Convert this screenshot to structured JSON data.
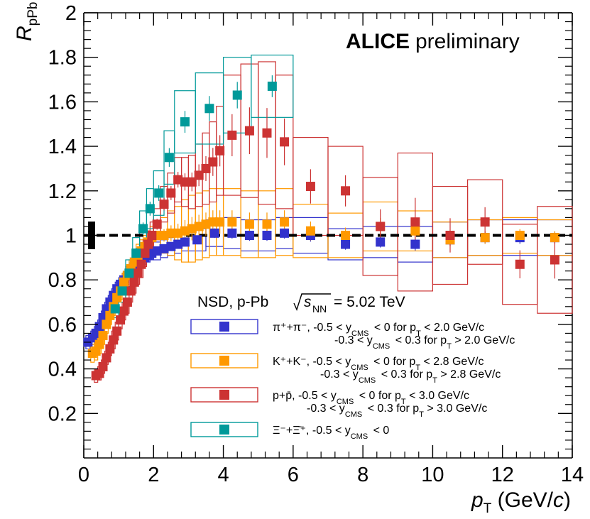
{
  "chart_data": {
    "type": "scatter",
    "title": "ALICE preliminary",
    "title_bold": "ALICE",
    "title_rest": "preliminary",
    "xlabel": "p_T (GeV/c)",
    "ylabel": "R_pPb",
    "xlim": [
      0,
      14
    ],
    "ylim": [
      0,
      2
    ],
    "x_ticks": [
      0,
      2,
      4,
      6,
      8,
      10,
      12,
      14
    ],
    "y_ticks": [
      0.2,
      0.4,
      0.6,
      0.8,
      1,
      1.2,
      1.4,
      1.6,
      1.8,
      2
    ],
    "reference_line": 1,
    "normalization_uncertainty": 0.062,
    "legend": {
      "header": {
        "prefix": "NSD, p-Pb",
        "s_symbol": "s",
        "s_sub": "NN",
        "suffix": "= 5.02 TeV"
      }
    },
    "series": [
      {
        "name": "pi",
        "color": "#3333cc",
        "legend_text": "π⁺+π⁻, -0.5 < y_CMS < 0 for p_T < 2.0 GeV/c ; -0.3 < y_CMS < 0.3 for p_T > 2.0 GeV/c",
        "legend_line1": "π⁺+π⁻, -0.5 < y",
        "legend_line1_tail": "< 0    for p",
        "legend_line1_end": "< 2.0 GeV/c",
        "legend_line2": "-0.3 < y",
        "legend_line2_tail": "< 0.3 for p",
        "legend_line2_end": "> 2.0 GeV/c",
        "points": [
          {
            "x": 0.12,
            "y": 0.52,
            "w": 0.12,
            "sys": 0.03
          },
          {
            "x": 0.25,
            "y": 0.54,
            "w": 0.1,
            "sys": 0.03
          },
          {
            "x": 0.35,
            "y": 0.56,
            "w": 0.1,
            "sys": 0.03
          },
          {
            "x": 0.45,
            "y": 0.59,
            "w": 0.1,
            "sys": 0.03
          },
          {
            "x": 0.55,
            "y": 0.63,
            "w": 0.1,
            "sys": 0.03
          },
          {
            "x": 0.65,
            "y": 0.67,
            "w": 0.1,
            "sys": 0.03
          },
          {
            "x": 0.75,
            "y": 0.7,
            "w": 0.1,
            "sys": 0.03
          },
          {
            "x": 0.85,
            "y": 0.73,
            "w": 0.1,
            "sys": 0.03
          },
          {
            "x": 0.95,
            "y": 0.76,
            "w": 0.1,
            "sys": 0.03
          },
          {
            "x": 1.05,
            "y": 0.78,
            "w": 0.1,
            "sys": 0.03
          },
          {
            "x": 1.15,
            "y": 0.8,
            "w": 0.1,
            "sys": 0.03
          },
          {
            "x": 1.25,
            "y": 0.82,
            "w": 0.1,
            "sys": 0.03
          },
          {
            "x": 1.35,
            "y": 0.84,
            "w": 0.1,
            "sys": 0.03
          },
          {
            "x": 1.45,
            "y": 0.86,
            "w": 0.1,
            "sys": 0.03
          },
          {
            "x": 1.55,
            "y": 0.88,
            "w": 0.1,
            "sys": 0.03
          },
          {
            "x": 1.65,
            "y": 0.89,
            "w": 0.1,
            "sys": 0.03
          },
          {
            "x": 1.75,
            "y": 0.9,
            "w": 0.1,
            "sys": 0.03
          },
          {
            "x": 1.85,
            "y": 0.91,
            "w": 0.1,
            "sys": 0.03
          },
          {
            "x": 1.95,
            "y": 0.92,
            "w": 0.1,
            "sys": 0.03
          },
          {
            "x": 2.1,
            "y": 0.93,
            "w": 0.2,
            "sys": 0.04
          },
          {
            "x": 2.3,
            "y": 0.94,
            "w": 0.2,
            "sys": 0.04
          },
          {
            "x": 2.5,
            "y": 0.95,
            "w": 0.2,
            "sys": 0.04
          },
          {
            "x": 2.7,
            "y": 0.96,
            "w": 0.2,
            "sys": 0.04
          },
          {
            "x": 2.9,
            "y": 0.97,
            "w": 0.2,
            "sys": 0.04
          },
          {
            "x": 3.25,
            "y": 0.98,
            "w": 0.5,
            "sys": 0.05
          },
          {
            "x": 3.75,
            "y": 1.01,
            "w": 0.5,
            "sys": 0.06
          },
          {
            "x": 4.25,
            "y": 1.01,
            "w": 0.5,
            "sys": 0.07
          },
          {
            "x": 4.75,
            "y": 1.0,
            "w": 0.5,
            "sys": 0.07
          },
          {
            "x": 5.25,
            "y": 1.0,
            "w": 0.5,
            "sys": 0.07
          },
          {
            "x": 5.75,
            "y": 1.01,
            "w": 0.5,
            "sys": 0.07
          },
          {
            "x": 6.5,
            "y": 1.0,
            "w": 1.0,
            "sys": 0.08
          },
          {
            "x": 7.5,
            "y": 0.96,
            "w": 1.0,
            "sys": 0.07
          },
          {
            "x": 8.5,
            "y": 0.97,
            "w": 1.0,
            "sys": 0.07
          },
          {
            "x": 9.5,
            "y": 0.96,
            "w": 1.0,
            "sys": 0.08
          },
          {
            "x": 10.5,
            "y": 0.98,
            "w": 1.0,
            "sys": 0.08
          },
          {
            "x": 11.5,
            "y": 0.99,
            "w": 1.0,
            "sys": 0.08
          },
          {
            "x": 12.5,
            "y": 0.99,
            "w": 1.0,
            "sys": 0.08
          },
          {
            "x": 13.5,
            "y": 0.99,
            "w": 1.0,
            "sys": 0.08
          }
        ]
      },
      {
        "name": "kaon",
        "color": "#ff9900",
        "legend_text": "K⁺+K⁻, -0.5 < y_CMS < 0 for p_T < 2.8 GeV/c ; -0.3 < y_CMS < 0.3 for p_T > 2.8 GeV/c",
        "legend_line1": "K⁺+K⁻, -0.5 < y",
        "legend_line1_tail": "< 0    for p",
        "legend_line1_end": "< 2.8 GeV/c",
        "legend_line2": "-0.3 < y",
        "legend_line2_tail": "< 0.3 for p",
        "legend_line2_end": "> 2.8 GeV/c",
        "points": [
          {
            "x": 0.25,
            "y": 0.47,
            "w": 0.1,
            "sys": 0.04
          },
          {
            "x": 0.35,
            "y": 0.48,
            "w": 0.1,
            "sys": 0.04
          },
          {
            "x": 0.45,
            "y": 0.51,
            "w": 0.1,
            "sys": 0.04
          },
          {
            "x": 0.55,
            "y": 0.55,
            "w": 0.1,
            "sys": 0.04
          },
          {
            "x": 0.65,
            "y": 0.6,
            "w": 0.1,
            "sys": 0.04
          },
          {
            "x": 0.75,
            "y": 0.64,
            "w": 0.1,
            "sys": 0.04
          },
          {
            "x": 0.85,
            "y": 0.68,
            "w": 0.1,
            "sys": 0.04
          },
          {
            "x": 0.95,
            "y": 0.72,
            "w": 0.1,
            "sys": 0.04
          },
          {
            "x": 1.05,
            "y": 0.75,
            "w": 0.1,
            "sys": 0.04
          },
          {
            "x": 1.15,
            "y": 0.79,
            "w": 0.1,
            "sys": 0.04
          },
          {
            "x": 1.25,
            "y": 0.82,
            "w": 0.1,
            "sys": 0.04
          },
          {
            "x": 1.35,
            "y": 0.85,
            "w": 0.1,
            "sys": 0.04
          },
          {
            "x": 1.45,
            "y": 0.88,
            "w": 0.1,
            "sys": 0.04
          },
          {
            "x": 1.55,
            "y": 0.91,
            "w": 0.1,
            "sys": 0.05
          },
          {
            "x": 1.65,
            "y": 0.93,
            "w": 0.1,
            "sys": 0.05
          },
          {
            "x": 1.75,
            "y": 0.95,
            "w": 0.1,
            "sys": 0.05
          },
          {
            "x": 1.85,
            "y": 0.97,
            "w": 0.1,
            "sys": 0.05
          },
          {
            "x": 1.95,
            "y": 0.99,
            "w": 0.1,
            "sys": 0.05
          },
          {
            "x": 2.1,
            "y": 1.0,
            "w": 0.2,
            "sys": 0.06
          },
          {
            "x": 2.3,
            "y": 1.0,
            "w": 0.2,
            "sys": 0.08
          },
          {
            "x": 2.5,
            "y": 1.01,
            "w": 0.2,
            "sys": 0.1
          },
          {
            "x": 2.7,
            "y": 1.01,
            "w": 0.2,
            "sys": 0.12
          },
          {
            "x": 2.9,
            "y": 1.02,
            "w": 0.2,
            "sys": 0.14
          },
          {
            "x": 3.1,
            "y": 1.03,
            "w": 0.2,
            "sys": 0.15
          },
          {
            "x": 3.3,
            "y": 1.04,
            "w": 0.2,
            "sys": 0.15
          },
          {
            "x": 3.5,
            "y": 1.05,
            "w": 0.2,
            "sys": 0.15
          },
          {
            "x": 3.7,
            "y": 1.06,
            "w": 0.2,
            "sys": 0.15
          },
          {
            "x": 3.9,
            "y": 1.06,
            "w": 0.2,
            "sys": 0.15
          },
          {
            "x": 4.25,
            "y": 1.06,
            "w": 0.5,
            "sys": 0.15
          },
          {
            "x": 4.75,
            "y": 1.05,
            "w": 0.5,
            "sys": 0.15
          },
          {
            "x": 5.25,
            "y": 1.05,
            "w": 0.5,
            "sys": 0.15
          },
          {
            "x": 5.75,
            "y": 1.06,
            "w": 0.5,
            "sys": 0.15
          },
          {
            "x": 6.5,
            "y": 1.02,
            "w": 1.0,
            "sys": 0.12
          },
          {
            "x": 7.5,
            "y": 1.0,
            "w": 1.0,
            "sys": 0.1
          },
          {
            "x": 8.5,
            "y": 1.04,
            "w": 1.0,
            "sys": 0.11
          },
          {
            "x": 9.5,
            "y": 1.02,
            "w": 1.0,
            "sys": 0.09
          },
          {
            "x": 10.5,
            "y": 0.98,
            "w": 1.0,
            "sys": 0.08
          },
          {
            "x": 11.5,
            "y": 0.99,
            "w": 1.0,
            "sys": 0.08
          },
          {
            "x": 12.5,
            "y": 1.0,
            "w": 1.0,
            "sys": 0.08
          },
          {
            "x": 13.5,
            "y": 0.99,
            "w": 1.0,
            "sys": 0.08
          }
        ]
      },
      {
        "name": "proton",
        "color": "#cc3333",
        "legend_text": "p+p̄, -0.5 < y_CMS < 0 for p_T < 3.0 GeV/c ; -0.3 < y_CMS < 0.3 for p_T > 3.0 GeV/c",
        "legend_line1": "p+p̄, -0.5 < y",
        "legend_line1_tail": "< 0    for p",
        "legend_line1_end": "< 3.0 GeV/c",
        "legend_line2": "-0.3 < y",
        "legend_line2_tail": "< 0.3 for p",
        "legend_line2_end": "> 3.0 GeV/c",
        "points": [
          {
            "x": 0.35,
            "y": 0.37,
            "w": 0.1,
            "sys": 0.03
          },
          {
            "x": 0.45,
            "y": 0.38,
            "w": 0.1,
            "sys": 0.03
          },
          {
            "x": 0.55,
            "y": 0.41,
            "w": 0.1,
            "sys": 0.03
          },
          {
            "x": 0.65,
            "y": 0.45,
            "w": 0.1,
            "sys": 0.03
          },
          {
            "x": 0.75,
            "y": 0.49,
            "w": 0.1,
            "sys": 0.03
          },
          {
            "x": 0.85,
            "y": 0.53,
            "w": 0.1,
            "sys": 0.04
          },
          {
            "x": 0.95,
            "y": 0.57,
            "w": 0.1,
            "sys": 0.04
          },
          {
            "x": 1.05,
            "y": 0.62,
            "w": 0.1,
            "sys": 0.04
          },
          {
            "x": 1.15,
            "y": 0.66,
            "w": 0.1,
            "sys": 0.04
          },
          {
            "x": 1.25,
            "y": 0.7,
            "w": 0.1,
            "sys": 0.05
          },
          {
            "x": 1.35,
            "y": 0.75,
            "w": 0.1,
            "sys": 0.05
          },
          {
            "x": 1.45,
            "y": 0.79,
            "w": 0.1,
            "sys": 0.05
          },
          {
            "x": 1.55,
            "y": 0.83,
            "w": 0.1,
            "sys": 0.05
          },
          {
            "x": 1.65,
            "y": 0.87,
            "w": 0.1,
            "sys": 0.06
          },
          {
            "x": 1.75,
            "y": 0.92,
            "w": 0.1,
            "sys": 0.06
          },
          {
            "x": 1.85,
            "y": 0.96,
            "w": 0.1,
            "sys": 0.06
          },
          {
            "x": 1.95,
            "y": 1.0,
            "w": 0.1,
            "sys": 0.06
          },
          {
            "x": 2.1,
            "y": 1.05,
            "w": 0.2,
            "sys": 0.07
          },
          {
            "x": 2.3,
            "y": 1.14,
            "w": 0.2,
            "sys": 0.08
          },
          {
            "x": 2.5,
            "y": 1.19,
            "w": 0.2,
            "sys": 0.09
          },
          {
            "x": 2.7,
            "y": 1.25,
            "w": 0.2,
            "sys": 0.1
          },
          {
            "x": 2.9,
            "y": 1.24,
            "w": 0.2,
            "sys": 0.11
          },
          {
            "x": 3.1,
            "y": 1.24,
            "w": 0.2,
            "sys": 0.12
          },
          {
            "x": 3.3,
            "y": 1.27,
            "w": 0.2,
            "sys": 0.14
          },
          {
            "x": 3.5,
            "y": 1.3,
            "w": 0.2,
            "sys": 0.16
          },
          {
            "x": 3.7,
            "y": 1.33,
            "w": 0.2,
            "sys": 0.18
          },
          {
            "x": 3.9,
            "y": 1.38,
            "w": 0.2,
            "sys": 0.2
          },
          {
            "x": 4.25,
            "y": 1.45,
            "w": 0.5,
            "sys": 0.27
          },
          {
            "x": 4.75,
            "y": 1.47,
            "w": 0.5,
            "sys": 0.3
          },
          {
            "x": 5.25,
            "y": 1.46,
            "w": 0.5,
            "sys": 0.32
          },
          {
            "x": 5.75,
            "y": 1.42,
            "w": 0.5,
            "sys": 0.3
          },
          {
            "x": 6.5,
            "y": 1.22,
            "w": 1.0,
            "sys": 0.22
          },
          {
            "x": 7.5,
            "y": 1.2,
            "w": 1.0,
            "sys": 0.2
          },
          {
            "x": 8.5,
            "y": 1.04,
            "w": 1.0,
            "sys": 0.22
          },
          {
            "x": 9.5,
            "y": 1.06,
            "w": 1.0,
            "sys": 0.31
          },
          {
            "x": 10.5,
            "y": 1.0,
            "w": 1.0,
            "sys": 0.22
          },
          {
            "x": 11.5,
            "y": 1.06,
            "w": 1.0,
            "sys": 0.19
          },
          {
            "x": 12.5,
            "y": 0.87,
            "w": 1.0,
            "sys": 0.18
          },
          {
            "x": 13.5,
            "y": 0.89,
            "w": 1.0,
            "sys": 0.24
          }
        ]
      },
      {
        "name": "xi",
        "color": "#009999",
        "legend_text": "Ξ⁻+Ξ̄⁺, -0.5 < y_CMS < 0",
        "legend_line1": "Ξ⁻+Ξ̄⁺,  -0.5 < y",
        "legend_line1_tail": "< 0",
        "legend_line1_end": "",
        "legend_line2": "",
        "legend_line2_tail": "",
        "legend_line2_end": "",
        "points": [
          {
            "x": 0.9,
            "y": 0.67,
            "w": 0.2,
            "sys": 0.04
          },
          {
            "x": 1.1,
            "y": 0.75,
            "w": 0.2,
            "sys": 0.05
          },
          {
            "x": 1.3,
            "y": 0.83,
            "w": 0.2,
            "sys": 0.06
          },
          {
            "x": 1.5,
            "y": 0.92,
            "w": 0.2,
            "sys": 0.07
          },
          {
            "x": 1.7,
            "y": 1.03,
            "w": 0.2,
            "sys": 0.08
          },
          {
            "x": 1.9,
            "y": 1.12,
            "w": 0.2,
            "sys": 0.09
          },
          {
            "x": 2.15,
            "y": 1.19,
            "w": 0.3,
            "sys": 0.1
          },
          {
            "x": 2.45,
            "y": 1.35,
            "w": 0.3,
            "sys": 0.12
          },
          {
            "x": 2.9,
            "y": 1.51,
            "w": 0.6,
            "sys": 0.14
          },
          {
            "x": 3.6,
            "y": 1.57,
            "w": 0.8,
            "sys": 0.16
          },
          {
            "x": 4.4,
            "y": 1.63,
            "w": 0.8,
            "sys": 0.17
          },
          {
            "x": 5.4,
            "y": 1.67,
            "w": 1.2,
            "sys": 0.14
          }
        ]
      }
    ]
  }
}
